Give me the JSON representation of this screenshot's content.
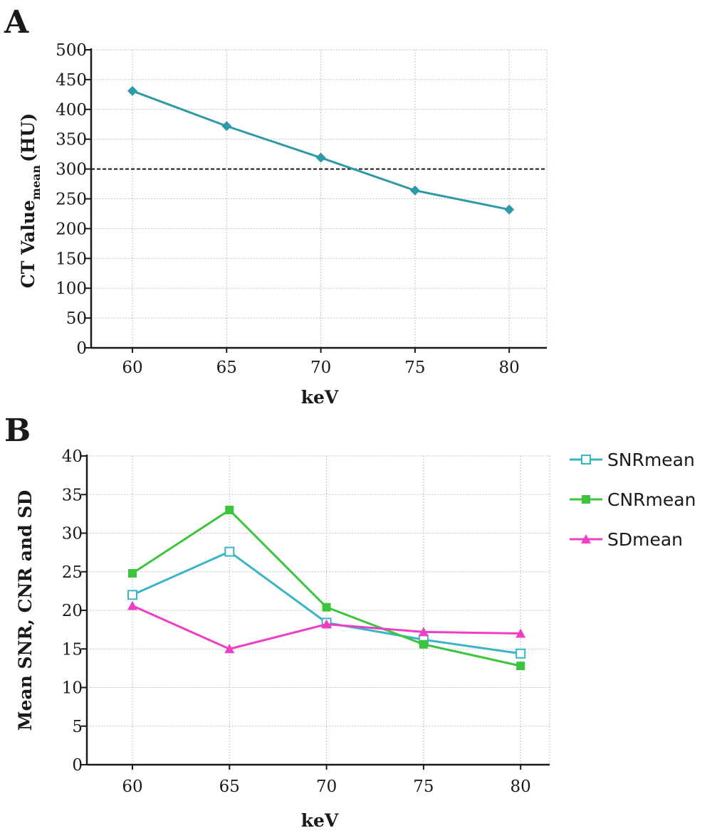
{
  "chart_data": [
    {
      "panel": "A",
      "type": "line",
      "xlabel": "keV",
      "ylabel": "CT Value",
      "ylabel_sub": "mean",
      "ylabel_unit": "(HU)",
      "categories": [
        "60",
        "65",
        "70",
        "75",
        "80"
      ],
      "yticks": [
        "0",
        "50",
        "100",
        "150",
        "200",
        "250",
        "300",
        "350",
        "400",
        "450",
        "500"
      ],
      "ylim": [
        0,
        500
      ],
      "grid": true,
      "reference_line": 300,
      "series": [
        {
          "values": [
            431,
            372,
            319,
            264,
            232
          ],
          "color": "#2e9aa8",
          "marker": "diamond"
        }
      ]
    },
    {
      "panel": "B",
      "type": "line",
      "xlabel": "keV",
      "ylabel": "Mean SNR, CNR and SD",
      "categories": [
        "60",
        "65",
        "70",
        "75",
        "80"
      ],
      "yticks": [
        "0",
        "5",
        "10",
        "15",
        "20",
        "25",
        "30",
        "35",
        "40"
      ],
      "ylim": [
        0,
        40
      ],
      "grid": true,
      "legend_position": "top-right-outside",
      "series": [
        {
          "name": "SNRmean",
          "values": [
            22.0,
            27.6,
            18.4,
            16.2,
            14.4
          ],
          "color": "#3ab5c4",
          "marker": "open-square"
        },
        {
          "name": "CNRmean",
          "values": [
            24.8,
            33.0,
            20.4,
            15.6,
            12.8
          ],
          "color": "#3cc43c",
          "marker": "filled-square"
        },
        {
          "name": "SDmean",
          "values": [
            20.6,
            15.0,
            18.2,
            17.2,
            17.0
          ],
          "color": "#ee3fc4",
          "marker": "triangle"
        }
      ]
    }
  ]
}
